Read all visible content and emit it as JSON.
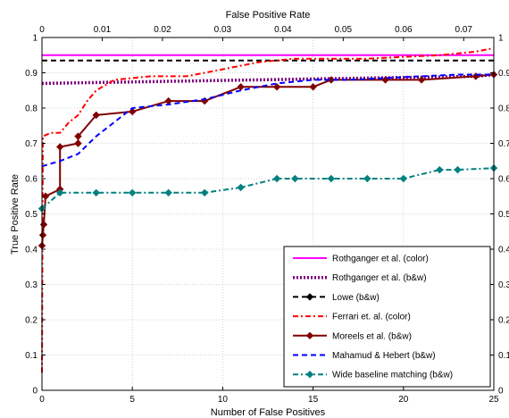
{
  "chart_data": {
    "type": "line",
    "title": "",
    "xlabel": "Number of False Positives",
    "x2label": "False Positive Rate",
    "ylabel": "True Positive Rate",
    "xlim": [
      0,
      25
    ],
    "x2lim": [
      0,
      0.075
    ],
    "ylim": [
      0,
      1
    ],
    "xticks": [
      0,
      5,
      10,
      15,
      20,
      25
    ],
    "x2ticks": [
      0,
      0.01,
      0.02,
      0.03,
      0.04,
      0.05,
      0.06,
      0.07
    ],
    "yticks": [
      0,
      0.1,
      0.2,
      0.3,
      0.4,
      0.5,
      0.6,
      0.7,
      0.8,
      0.9,
      1
    ],
    "xtick_labels": [
      "0",
      "5",
      "10",
      "15",
      "20",
      "25"
    ],
    "x2tick_labels": [
      "0",
      "0.01",
      "0.02",
      "0.03",
      "0.04",
      "0.05",
      "0.06",
      "0.07"
    ],
    "ytick_labels": [
      "0",
      "0.1",
      "0.2",
      "0.3",
      "0.4",
      "0.5",
      "0.6",
      "0.7",
      "0.8",
      "0.9",
      "1"
    ],
    "grid": true,
    "legend_position": "bottom-right",
    "series": [
      {
        "name": "Rothganger et al. (color)",
        "color": "#ff00ff",
        "style": "solid",
        "marker": "none",
        "x": [
          0,
          25
        ],
        "y": [
          0.95,
          0.95
        ]
      },
      {
        "name": "Rothganger et al. (b&w)",
        "color": "#800080",
        "style": "dotted",
        "marker": "none",
        "x": [
          0,
          24,
          25
        ],
        "y": [
          0.87,
          0.89,
          0.895
        ]
      },
      {
        "name": "Lowe (b&w)",
        "color": "#000000",
        "style": "dashed",
        "marker": "none",
        "x": [
          0,
          25
        ],
        "y": [
          0.935,
          0.935
        ]
      },
      {
        "name": "Ferrari et. al. (color)",
        "color": "#ff0000",
        "style": "dashdot",
        "marker": "none",
        "x": [
          0,
          0.05,
          0.5,
          1,
          1.5,
          2,
          2.5,
          3,
          4,
          5,
          6,
          7,
          8,
          9,
          10,
          12,
          14,
          16,
          18,
          20,
          22,
          24,
          25
        ],
        "y": [
          0.05,
          0.72,
          0.73,
          0.73,
          0.76,
          0.78,
          0.82,
          0.85,
          0.88,
          0.885,
          0.89,
          0.89,
          0.89,
          0.9,
          0.91,
          0.93,
          0.94,
          0.94,
          0.94,
          0.945,
          0.95,
          0.96,
          0.97
        ]
      },
      {
        "name": "Moreels et al. (b&w)",
        "color": "#800000",
        "style": "solid",
        "marker": "diamond",
        "x": [
          0,
          0.05,
          0.1,
          0.2,
          1,
          1,
          2,
          2,
          3,
          5,
          7,
          9,
          11,
          13,
          15,
          16,
          19,
          21,
          24,
          25
        ],
        "y": [
          0.41,
          0.44,
          0.47,
          0.55,
          0.57,
          0.69,
          0.7,
          0.72,
          0.78,
          0.79,
          0.82,
          0.82,
          0.86,
          0.86,
          0.86,
          0.88,
          0.88,
          0.88,
          0.89,
          0.895
        ]
      },
      {
        "name": "Mahamud & Hebert (b&w)",
        "color": "#0000ff",
        "style": "dashed",
        "marker": "none",
        "x": [
          0,
          1,
          2,
          3,
          4,
          5,
          7,
          9,
          11,
          13,
          15,
          17,
          19,
          21,
          23,
          25
        ],
        "y": [
          0.635,
          0.65,
          0.67,
          0.72,
          0.76,
          0.8,
          0.81,
          0.825,
          0.85,
          0.87,
          0.88,
          0.88,
          0.885,
          0.89,
          0.895,
          0.895
        ]
      },
      {
        "name": "Wide baseline matching (b&w)",
        "color": "#008080",
        "style": "dashdot",
        "marker": "diamond",
        "x": [
          0,
          1,
          3,
          5,
          7,
          9,
          11,
          13,
          14,
          16,
          18,
          20,
          22,
          23,
          25
        ],
        "y": [
          0.515,
          0.56,
          0.56,
          0.56,
          0.56,
          0.56,
          0.575,
          0.6,
          0.6,
          0.6,
          0.6,
          0.6,
          0.625,
          0.625,
          0.63
        ]
      }
    ]
  }
}
